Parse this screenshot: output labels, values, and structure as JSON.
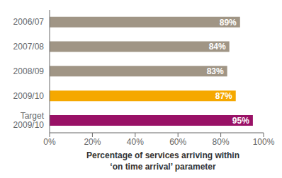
{
  "chart_data": {
    "type": "bar",
    "orientation": "horizontal",
    "categories": [
      "2006/07",
      "2007/08",
      "2008/09",
      "2009/10",
      "Target\n2009/10"
    ],
    "values": [
      89,
      84,
      83,
      87,
      95
    ],
    "value_labels": [
      "89%",
      "84%",
      "83%",
      "87%",
      "95%"
    ],
    "data_labels": true,
    "colors": [
      "#a09585",
      "#a09585",
      "#a09585",
      "#f5a800",
      "#991166"
    ],
    "xlabel": "Percentage of services arriving within\n‘on time arrival’ parameter",
    "xlim": [
      0,
      100
    ],
    "xticks": [
      {
        "value": 0,
        "label": "0%"
      },
      {
        "value": 20,
        "label": "20%"
      },
      {
        "value": 40,
        "label": "40%"
      },
      {
        "value": 60,
        "label": "60%"
      },
      {
        "value": 80,
        "label": "80%"
      },
      {
        "value": 100,
        "label": "100%"
      }
    ],
    "grid": false
  }
}
